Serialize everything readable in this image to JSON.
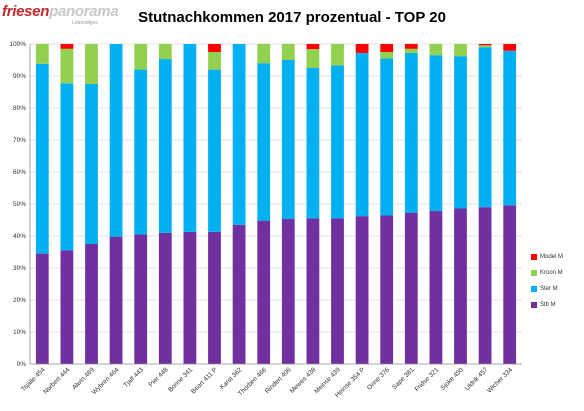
{
  "logo": {
    "part1": "friesen",
    "part2": "panorama",
    "sub": "Lebendiges"
  },
  "chart_data": {
    "type": "bar",
    "stacked": true,
    "percent": true,
    "title": "Stutnachkommen 2017 prozentual - TOP 20",
    "xlabel": "",
    "ylabel": "",
    "ylim": [
      0,
      100
    ],
    "yticks": [
      "0%",
      "10%",
      "20%",
      "30%",
      "40%",
      "50%",
      "60%",
      "70%",
      "80%",
      "90%",
      "100%"
    ],
    "legend_position": "right",
    "categories": [
      "Tsjalle 454",
      "Norbert 444",
      "Alwin 469",
      "Wybren 464",
      "Tjalf 443",
      "Pier 448",
      "Bonne 341",
      "Beart 411 P",
      "Karst 362",
      "Thorben 466",
      "Rindert 406",
      "Mewes 438",
      "Meinse 439",
      "Heinse 354 P",
      "Onne 376",
      "Sape 381",
      "Fridse 321",
      "Sjoke 450",
      "Uldrik 457",
      "Wicher 334"
    ],
    "series": [
      {
        "name": "Stb M",
        "color": "#7030a0",
        "values": [
          34.5,
          35.5,
          37.5,
          39.8,
          40.5,
          41,
          41.3,
          41.3,
          43.5,
          44.8,
          45.3,
          45.5,
          45.5,
          46.2,
          46.4,
          47.3,
          47.8,
          48.6,
          49,
          49.6
        ]
      },
      {
        "name": "Ster M",
        "color": "#00b0f0",
        "values": [
          59.3,
          52.2,
          50,
          60.2,
          51.5,
          54.3,
          58.7,
          50.7,
          56.5,
          49.2,
          49.7,
          47,
          47.8,
          51,
          49.1,
          49.9,
          48.7,
          47.6,
          50,
          48.3
        ]
      },
      {
        "name": "Kroon M",
        "color": "#92d050",
        "values": [
          6.2,
          10.8,
          12.5,
          0,
          8,
          4.7,
          0,
          5.5,
          0,
          6,
          5,
          5.9,
          6.7,
          0,
          2,
          1.3,
          3.5,
          3.8,
          0.6,
          0
        ]
      },
      {
        "name": "Model M",
        "color": "#ff0000",
        "values": [
          0,
          1.5,
          0,
          0,
          0,
          0,
          0,
          2.5,
          0,
          0,
          0,
          1.6,
          0,
          2.8,
          2.5,
          1.5,
          0,
          0,
          0.4,
          2.1
        ]
      }
    ]
  }
}
